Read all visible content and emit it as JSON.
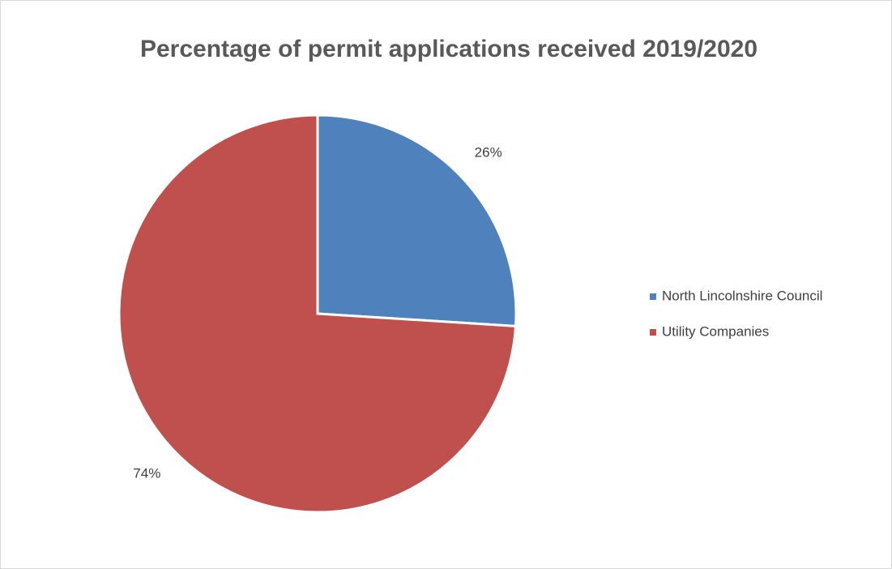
{
  "chart_data": {
    "type": "pie",
    "title": "Percentage of permit applications received 2019/2020",
    "categories": [
      "North Lincolnshire Council",
      "Utility Companies"
    ],
    "values": [
      26,
      74
    ],
    "value_labels": [
      "26%",
      "74%"
    ],
    "colors": [
      "#4f81bd",
      "#c0504d"
    ],
    "legend": "right"
  }
}
